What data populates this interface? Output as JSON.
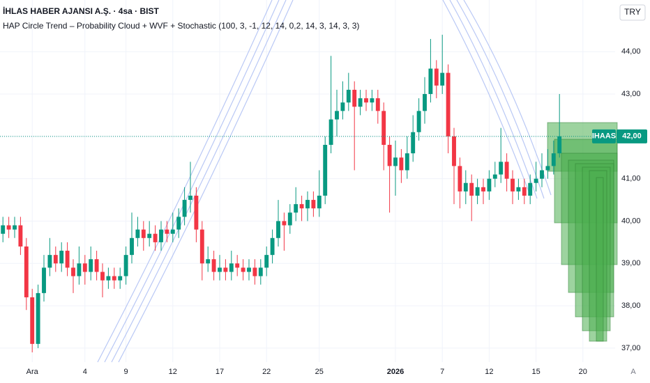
{
  "chart_data": {
    "type": "candlestick",
    "title": "İHLAS HABER AJANSI A.Ş. · 4sa · BIST",
    "subtitle": "HAP Circle Trend – Probability Cloud + WVF + Stochastic (100, 3, -1, 12, 14, 0,2, 14, 3, 14, 3, 3)",
    "currency": "TRY",
    "scale_mode": "A",
    "up_color": "#089981",
    "down_color": "#f23645",
    "grid": true,
    "xlim": [
      -0.5,
      104.5
    ],
    "xticks": [
      {
        "value": 5,
        "label": "Ara"
      },
      {
        "value": 14,
        "label": "4"
      },
      {
        "value": 21,
        "label": "9"
      },
      {
        "value": 29,
        "label": "12"
      },
      {
        "value": 37,
        "label": "17"
      },
      {
        "value": 45,
        "label": "22"
      },
      {
        "value": 54,
        "label": "25"
      },
      {
        "value": 67,
        "label": "2026"
      },
      {
        "value": 75,
        "label": "7"
      },
      {
        "value": 83,
        "label": "12"
      },
      {
        "value": 91,
        "label": "15"
      },
      {
        "value": 99,
        "label": "20"
      }
    ],
    "ylim": [
      36.67,
      45.22
    ],
    "yticks": [
      {
        "value": 37,
        "label": "37,00"
      },
      {
        "value": 38,
        "label": "38,00"
      },
      {
        "value": 39,
        "label": "39,00"
      },
      {
        "value": 40,
        "label": "40,00"
      },
      {
        "value": 41,
        "label": "41,00"
      },
      {
        "value": 42,
        "label": "42,00"
      },
      {
        "value": 43,
        "label": "43,00"
      },
      {
        "value": 44,
        "label": "44,00"
      }
    ],
    "price_line": {
      "symbol": "IHAAS",
      "value": 42,
      "label": "42,00",
      "color": "#089981"
    },
    "open": [
      39.7,
      39.9,
      39.8,
      39.9,
      39.4,
      38.2,
      37.1,
      38.3,
      38.9,
      39.2,
      39.0,
      39.3,
      38.9,
      38.7,
      39.0,
      38.8,
      39.1,
      38.8,
      38.6,
      38.7,
      38.6,
      38.7,
      39.2,
      39.6,
      39.8,
      39.6,
      39.7,
      39.5,
      39.8,
      39.7,
      39.8,
      40.1,
      40.5,
      40.6,
      39.8,
      39.0,
      39.1,
      38.8,
      38.9,
      38.8,
      39.0,
      38.9,
      38.8,
      38.9,
      38.7,
      38.9,
      39.2,
      39.6,
      40.0,
      39.9,
      40.2,
      40.4,
      40.3,
      40.5,
      40.3,
      40.6,
      41.8,
      42.4,
      42.6,
      42.8,
      43.1,
      42.7,
      42.9,
      42.8,
      42.9,
      42.6,
      41.8,
      41.3,
      41.5,
      41.2,
      41.6,
      42.1,
      42.6,
      43.0,
      43.6,
      43.2,
      43.5,
      42.0,
      41.3,
      40.7,
      40.9,
      40.6,
      40.8,
      40.7,
      41.0,
      41.1,
      41.4,
      41.0,
      40.7,
      40.8,
      40.6,
      40.9,
      41.0,
      41.2,
      41.3,
      41.6
    ],
    "high": [
      40.1,
      40.1,
      40.1,
      40.1,
      39.6,
      38.4,
      38.5,
      39.2,
      39.6,
      39.4,
      39.5,
      39.5,
      39.1,
      39.4,
      39.2,
      39.4,
      39.3,
      39.0,
      38.9,
      38.9,
      38.9,
      39.4,
      40.2,
      40.1,
      40.0,
      40.0,
      39.9,
      40.0,
      40.0,
      40.2,
      40.3,
      40.8,
      41.4,
      40.8,
      40.0,
      39.4,
      39.3,
      39.2,
      39.1,
      39.3,
      39.2,
      39.1,
      39.1,
      39.1,
      39.1,
      39.4,
      39.8,
      40.5,
      40.2,
      40.4,
      40.8,
      40.6,
      40.7,
      40.7,
      41.2,
      42.0,
      43.9,
      43.1,
      43.3,
      43.5,
      43.3,
      43.1,
      43.1,
      43.1,
      43.1,
      42.8,
      42.0,
      41.9,
      41.7,
      42.0,
      42.5,
      42.9,
      43.4,
      44.3,
      43.8,
      44.4,
      43.7,
      42.2,
      41.5,
      41.2,
      41.1,
      41.0,
      41.0,
      41.2,
      41.4,
      42.2,
      41.6,
      41.2,
      41.0,
      41.0,
      41.1,
      41.4,
      41.6,
      41.7,
      41.9,
      43.0
    ],
    "low": [
      39.5,
      39.6,
      39.6,
      39.2,
      37.9,
      36.9,
      37.0,
      38.1,
      38.7,
      38.8,
      38.8,
      38.7,
      38.3,
      38.5,
      38.5,
      38.6,
      38.6,
      38.2,
      38.4,
      38.4,
      38.4,
      38.5,
      39.0,
      39.4,
      39.3,
      39.4,
      39.3,
      39.3,
      39.5,
      39.5,
      39.6,
      39.9,
      40.2,
      39.5,
      38.6,
      38.8,
      38.6,
      38.6,
      38.6,
      38.6,
      38.7,
      38.6,
      38.6,
      38.5,
      38.5,
      38.7,
      39.0,
      39.4,
      39.3,
      39.7,
      40.0,
      40.0,
      40.0,
      40.1,
      40.1,
      40.4,
      41.6,
      42.0,
      42.4,
      42.6,
      41.2,
      42.5,
      42.6,
      42.6,
      42.3,
      41.2,
      40.2,
      40.6,
      40.9,
      41.0,
      41.4,
      41.9,
      42.3,
      42.8,
      42.9,
      43.0,
      41.6,
      40.4,
      40.3,
      40.4,
      40.0,
      40.4,
      40.4,
      40.5,
      40.8,
      40.9,
      40.7,
      40.4,
      40.5,
      40.4,
      40.4,
      40.7,
      40.8,
      41.0,
      41.1,
      41.5
    ],
    "close": [
      39.9,
      39.8,
      39.9,
      39.4,
      38.2,
      37.1,
      38.3,
      38.9,
      39.2,
      39.0,
      39.3,
      38.9,
      38.7,
      39.0,
      38.8,
      39.1,
      38.8,
      38.6,
      38.7,
      38.6,
      38.7,
      39.2,
      39.6,
      39.8,
      39.6,
      39.7,
      39.5,
      39.8,
      39.7,
      39.8,
      40.1,
      40.5,
      40.6,
      39.8,
      39.0,
      39.1,
      38.8,
      38.9,
      38.8,
      39.0,
      38.9,
      38.8,
      38.9,
      38.7,
      38.9,
      39.2,
      39.6,
      40.0,
      39.9,
      40.2,
      40.4,
      40.3,
      40.5,
      40.3,
      40.6,
      41.8,
      42.4,
      42.6,
      42.8,
      43.1,
      42.7,
      42.9,
      42.8,
      42.9,
      42.6,
      41.8,
      41.3,
      41.5,
      41.2,
      41.6,
      42.1,
      42.6,
      43.0,
      43.6,
      43.2,
      43.5,
      42.0,
      41.3,
      40.7,
      40.9,
      40.6,
      40.8,
      40.7,
      41.0,
      41.1,
      41.4,
      41.0,
      40.7,
      40.8,
      40.6,
      40.9,
      41.0,
      41.2,
      41.3,
      41.6,
      42.0
    ]
  }
}
